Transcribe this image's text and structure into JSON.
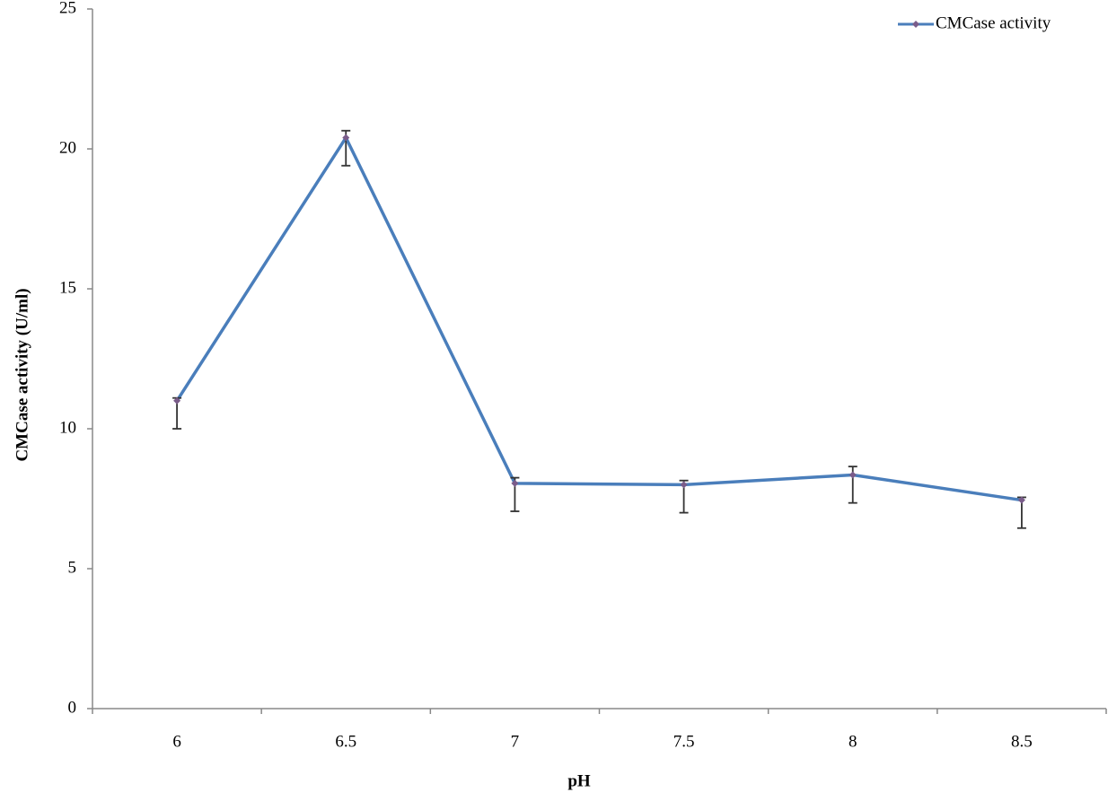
{
  "chart_data": {
    "type": "line",
    "x_label": "pH",
    "y_label": "CMCase activity (U/ml)",
    "categories": [
      "6",
      "6.5",
      "7",
      "7.5",
      "8",
      "8.5"
    ],
    "series": [
      {
        "name": "CMCase activity",
        "color": "#4a7ebb",
        "values": [
          11.0,
          20.4,
          8.05,
          8.0,
          8.35,
          7.45
        ],
        "error_plus": [
          0.1,
          0.25,
          0.2,
          0.15,
          0.3,
          0.1
        ],
        "error_minus": [
          1.0,
          1.0,
          1.0,
          1.0,
          1.0,
          1.0
        ]
      }
    ],
    "ylim": [
      0,
      25
    ],
    "yticks": [
      0,
      5,
      10,
      15,
      20,
      25
    ],
    "grid": false,
    "legend": "upper right"
  }
}
